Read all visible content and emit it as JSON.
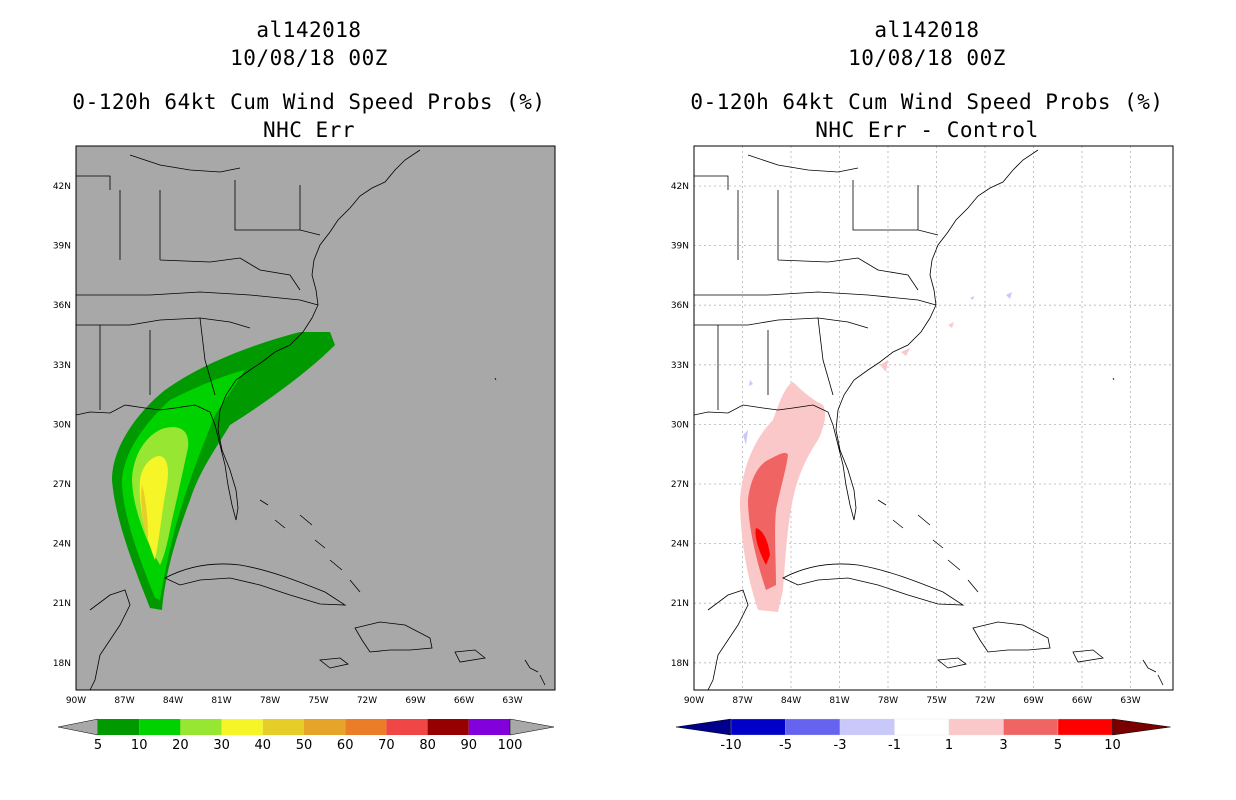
{
  "panels": [
    {
      "title_line1": "al142018",
      "title_line2": "10/08/18 00Z",
      "title_line3": "0-120h 64kt Cum Wind Speed Probs (%)",
      "title_line4": "NHC Err",
      "background_color": "#a8a8a8",
      "colorbar": {
        "colors": [
          "#009a00",
          "#00d200",
          "#96e632",
          "#f5f528",
          "#e6cd28",
          "#e6a528",
          "#eb7d28",
          "#f04646",
          "#960000",
          "#8200dc"
        ],
        "labels": [
          "5",
          "10",
          "20",
          "30",
          "40",
          "50",
          "60",
          "70",
          "80",
          "90",
          "100"
        ]
      }
    },
    {
      "title_line1": "al142018",
      "title_line2": "10/08/18 00Z",
      "title_line3": "0-120h 64kt Cum Wind Speed Probs (%)",
      "title_line4": "NHC Err - Control",
      "background_color": "#ffffff",
      "colorbar": {
        "colors": [
          "#0000c8",
          "#6464f0",
          "#c8c8fa",
          "#ffffff",
          "#fac8c8",
          "#f06464",
          "#ff0000"
        ],
        "labels": [
          "-10",
          "-5",
          "-3",
          "-1",
          "1",
          "3",
          "5",
          "10"
        ],
        "end_colors": [
          "#00008c",
          "#780000"
        ]
      }
    }
  ],
  "axes": {
    "lat_labels": [
      "42N",
      "39N",
      "36N",
      "33N",
      "30N",
      "27N",
      "24N",
      "21N",
      "18N"
    ],
    "lon_labels": [
      "90W",
      "87W",
      "84W",
      "81W",
      "78W",
      "75W",
      "72W",
      "69W",
      "66W",
      "63W"
    ]
  }
}
